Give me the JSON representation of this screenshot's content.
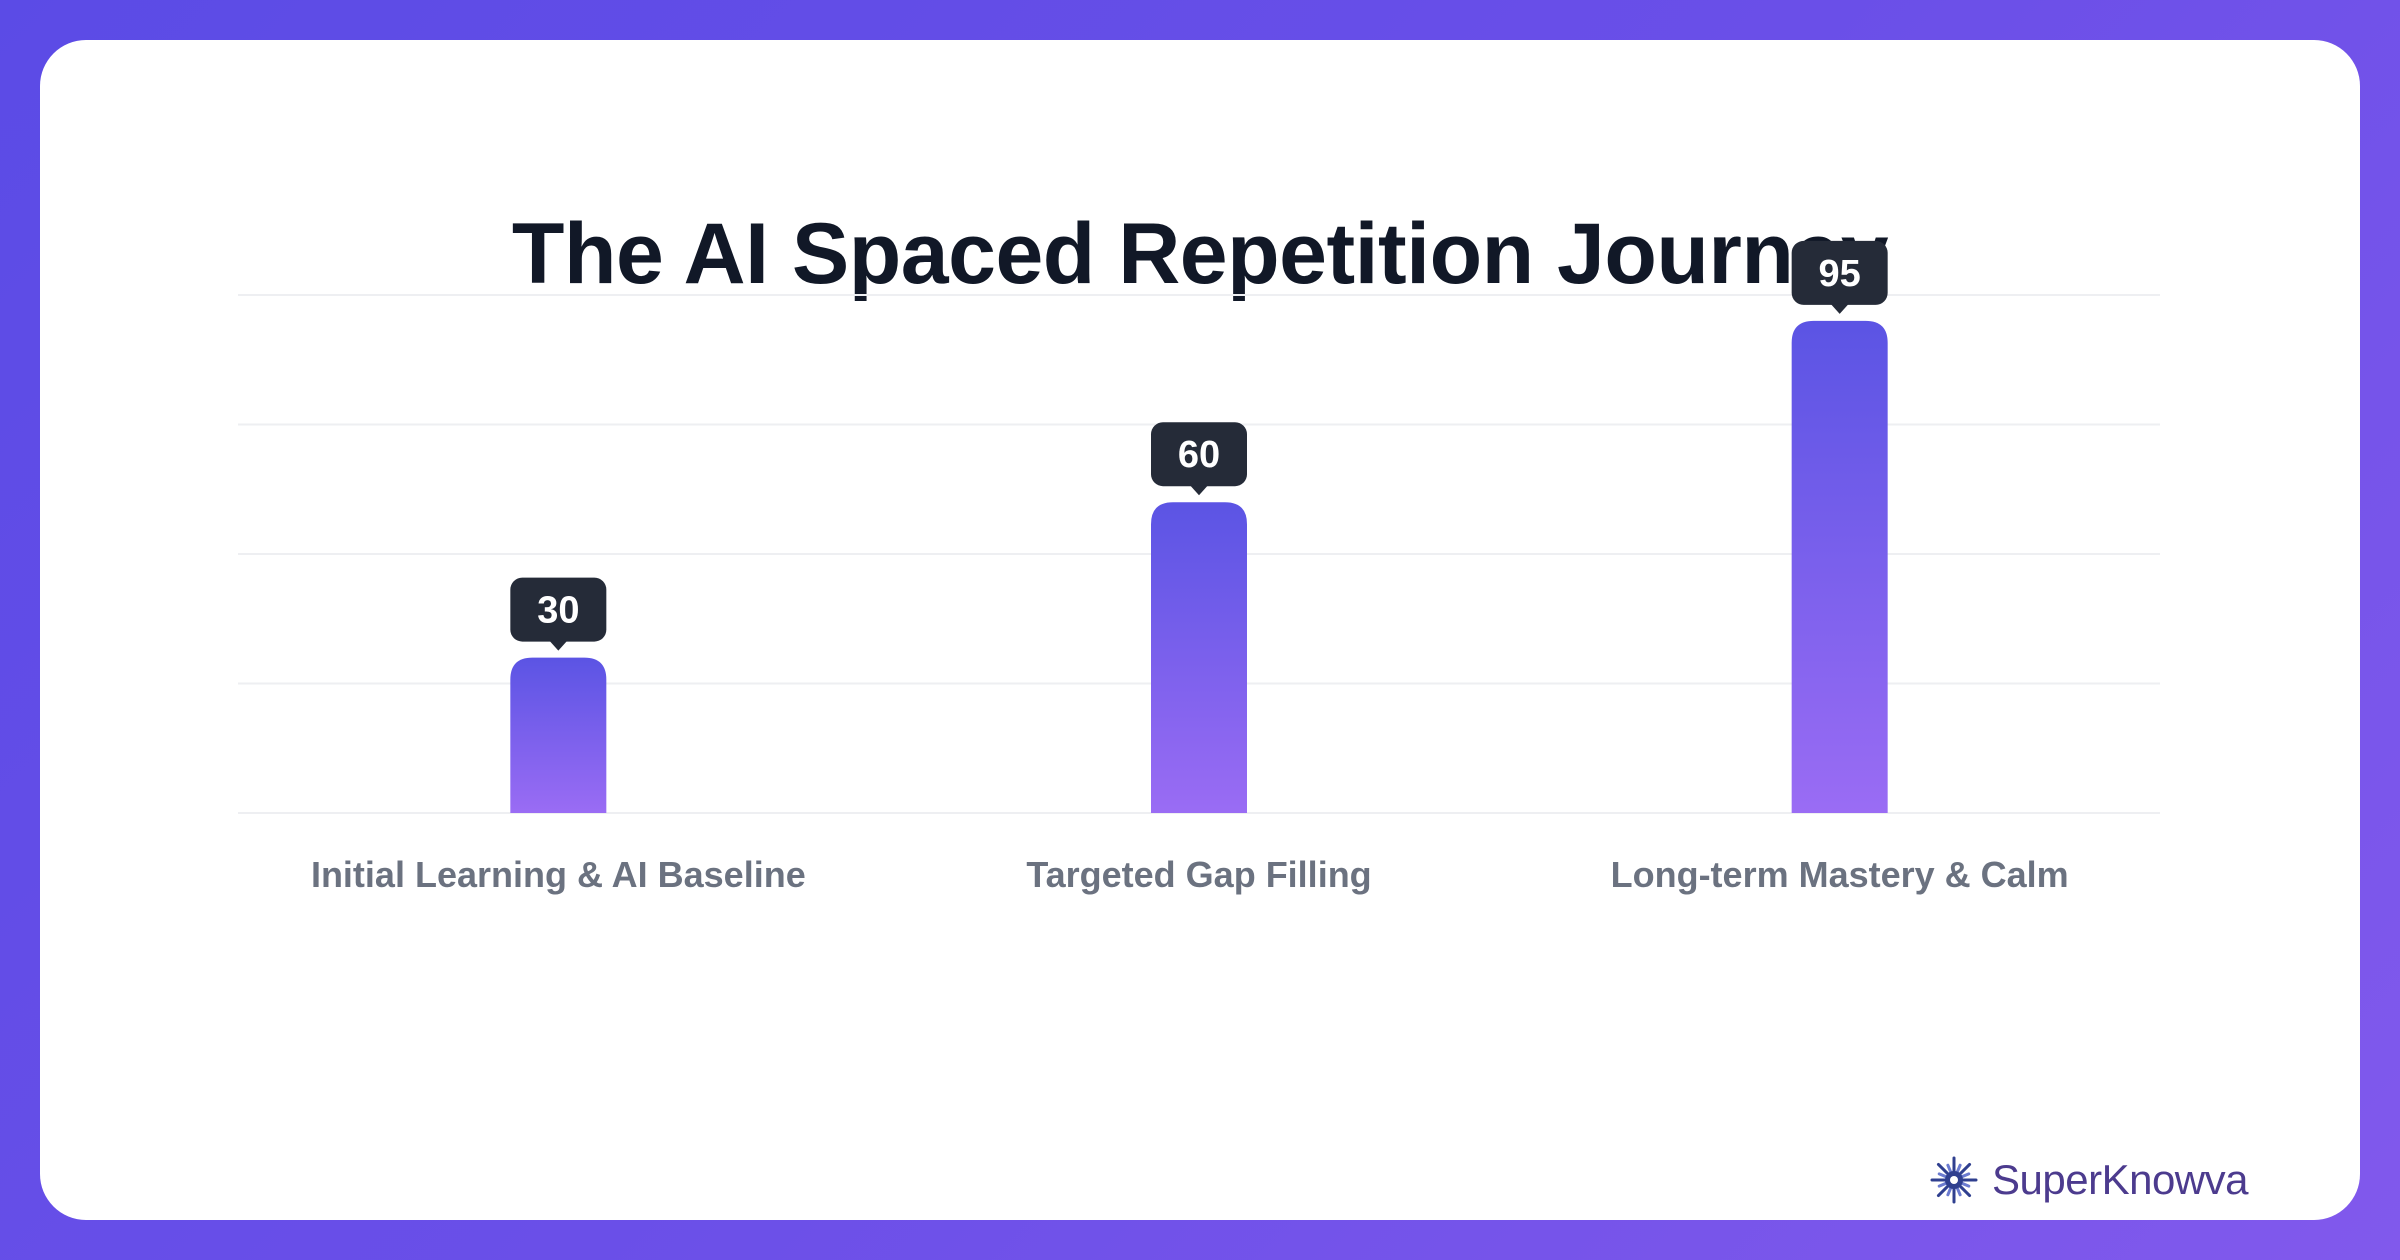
{
  "chart_data": {
    "type": "bar",
    "title": "The AI Spaced Repetition Journey",
    "categories": [
      "Initial Learning & AI Baseline",
      "Targeted Gap Filling",
      "Long-term Mastery & Calm"
    ],
    "values": [
      30,
      60,
      95
    ],
    "value_labels": [
      "30",
      "60",
      "95"
    ],
    "ylim": [
      0,
      100
    ],
    "grid": true,
    "colors": {
      "bar_top": "#5b54e4",
      "bar_bottom": "#9a6cf4",
      "label_bg": "#252b38",
      "label_text": "#ffffff",
      "category_text": "#6b7280",
      "gridline": "#eeeff2"
    }
  },
  "brand": {
    "name": "SuperKnowva",
    "icon": "sunburst-logo-icon"
  }
}
